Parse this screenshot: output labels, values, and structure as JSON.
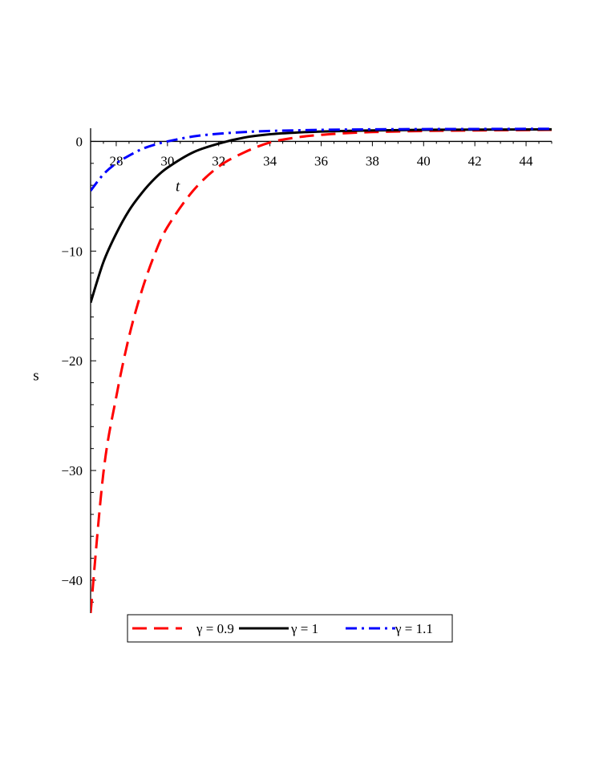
{
  "chart_data": {
    "type": "line",
    "xlabel": "t",
    "ylabel": "s",
    "xlim": [
      27,
      45
    ],
    "ylim": [
      -43,
      1.2
    ],
    "x_ticks": [
      28,
      30,
      32,
      34,
      36,
      38,
      40,
      42,
      44
    ],
    "x_tick_labels": [
      "28",
      "30",
      "32",
      "34",
      "36",
      "38",
      "40",
      "42",
      "44"
    ],
    "y_ticks": [
      0,
      -10,
      -20,
      -30,
      -40
    ],
    "y_tick_labels": [
      "0",
      "−10",
      "−20",
      "−30",
      "−40"
    ],
    "legend_placement": "bottom",
    "series": [
      {
        "name": "γ = 0.9",
        "color": "#ff0000",
        "dash": "dashed",
        "x": [
          27,
          27.5,
          28,
          28.5,
          29,
          29.5,
          30,
          31,
          32,
          33,
          34,
          35,
          36,
          37,
          38,
          40,
          42,
          45
        ],
        "y": [
          -43,
          -30.2,
          -23.3,
          -17.8,
          -13.6,
          -10.3,
          -7.8,
          -4.5,
          -2.3,
          -1.0,
          -0.1,
          0.35,
          0.6,
          0.75,
          0.85,
          0.95,
          1.0,
          1.05
        ]
      },
      {
        "name": "γ = 1",
        "color": "#000000",
        "dash": "solid",
        "x": [
          27,
          27.5,
          28,
          28.5,
          29,
          29.5,
          30,
          31,
          32,
          33,
          34,
          35,
          36,
          38,
          40,
          42,
          45
        ],
        "y": [
          -14.7,
          -11.0,
          -8.4,
          -6.3,
          -4.7,
          -3.4,
          -2.4,
          -1.0,
          -0.2,
          0.35,
          0.65,
          0.8,
          0.9,
          1.0,
          1.05,
          1.07,
          1.1
        ]
      },
      {
        "name": "γ = 1.1",
        "color": "#0000ff",
        "dash": "dashdot",
        "x": [
          27,
          27.5,
          28,
          28.5,
          29,
          29.5,
          30,
          31,
          32,
          33,
          34,
          36,
          38,
          40,
          42,
          45
        ],
        "y": [
          -4.5,
          -3.0,
          -2.0,
          -1.3,
          -0.7,
          -0.3,
          0.0,
          0.45,
          0.7,
          0.85,
          0.95,
          1.05,
          1.1,
          1.12,
          1.13,
          1.15
        ]
      }
    ]
  }
}
